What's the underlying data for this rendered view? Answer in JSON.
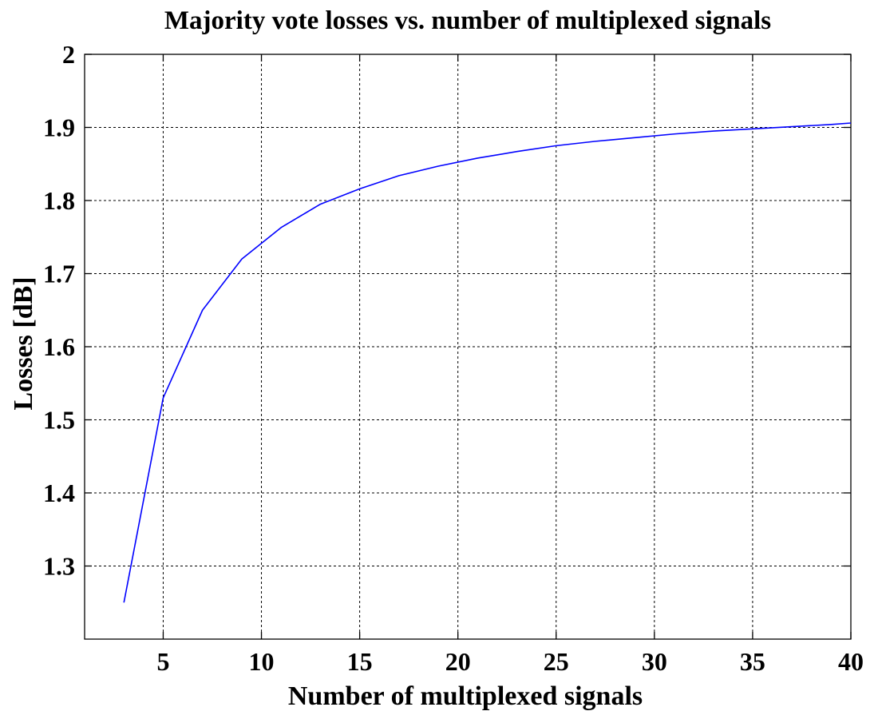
{
  "chart_data": {
    "type": "line",
    "title": "Majority vote losses vs. number of multiplexed signals",
    "xlabel": "Number of multiplexed signals",
    "ylabel": "Losses [dB]",
    "xlim": [
      1,
      40
    ],
    "ylim": [
      1.2,
      2.0
    ],
    "xticks": [
      5,
      10,
      15,
      20,
      25,
      30,
      35,
      40
    ],
    "yticks": [
      1.3,
      1.4,
      1.5,
      1.6,
      1.7,
      1.8,
      1.9,
      2.0
    ],
    "xtick_labels": [
      "5",
      "10",
      "15",
      "20",
      "25",
      "30",
      "35",
      "40"
    ],
    "ytick_labels": [
      "1.3",
      "1.4",
      "1.5",
      "1.6",
      "1.7",
      "1.8",
      "1.9",
      "2"
    ],
    "grid": true,
    "series": [
      {
        "color": "#0000ff",
        "x": [
          3,
          5,
          7,
          9,
          11,
          13,
          15,
          17,
          19,
          21,
          23,
          25,
          27,
          29,
          31,
          33,
          35,
          37,
          39,
          40
        ],
        "values": [
          1.25,
          1.53,
          1.65,
          1.72,
          1.763,
          1.795,
          1.816,
          1.834,
          1.847,
          1.858,
          1.867,
          1.875,
          1.881,
          1.886,
          1.891,
          1.895,
          1.898,
          1.901,
          1.904,
          1.906
        ]
      }
    ]
  }
}
